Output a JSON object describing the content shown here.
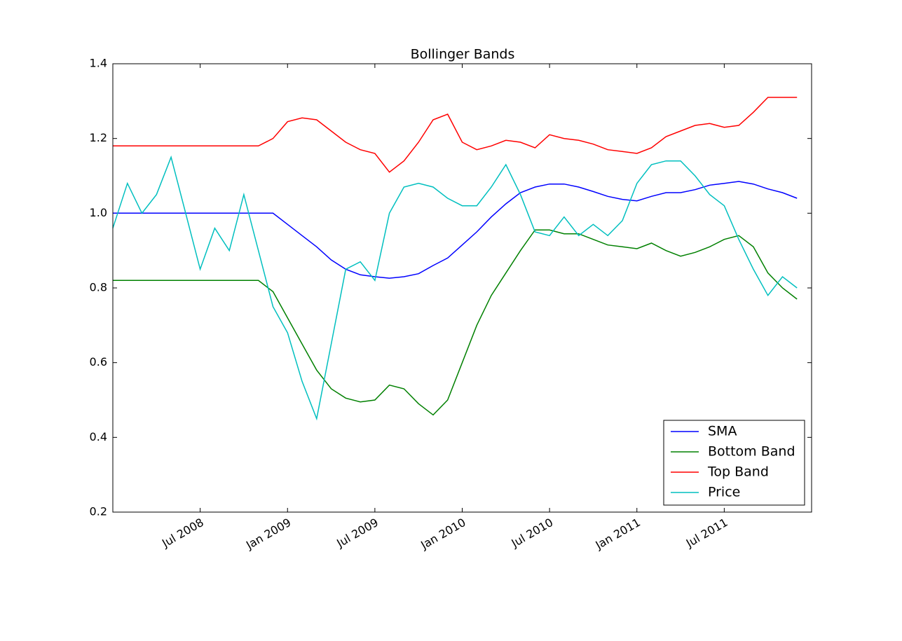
{
  "chart_data": {
    "type": "line",
    "title": "Bollinger Bands",
    "x": [
      "2008-01",
      "2008-02",
      "2008-03",
      "2008-04",
      "2008-05",
      "2008-06",
      "2008-07",
      "2008-08",
      "2008-09",
      "2008-10",
      "2008-11",
      "2008-12",
      "2009-01",
      "2009-02",
      "2009-03",
      "2009-04",
      "2009-05",
      "2009-06",
      "2009-07",
      "2009-08",
      "2009-09",
      "2009-10",
      "2009-11",
      "2009-12",
      "2010-01",
      "2010-02",
      "2010-03",
      "2010-04",
      "2010-05",
      "2010-06",
      "2010-07",
      "2010-08",
      "2010-09",
      "2010-10",
      "2010-11",
      "2010-12",
      "2011-01",
      "2011-02",
      "2011-03",
      "2011-04",
      "2011-05",
      "2011-06",
      "2011-07",
      "2011-08",
      "2011-09",
      "2011-10",
      "2011-11",
      "2011-12"
    ],
    "series": [
      {
        "name": "SMA",
        "color": "#0000ff",
        "values": [
          1.0,
          1.0,
          1.0,
          1.0,
          1.0,
          1.0,
          1.0,
          1.0,
          1.0,
          1.0,
          1.0,
          1.0,
          0.97,
          0.94,
          0.91,
          0.875,
          0.85,
          0.835,
          0.83,
          0.826,
          0.83,
          0.838,
          0.86,
          0.88,
          0.915,
          0.95,
          0.99,
          1.025,
          1.055,
          1.07,
          1.078,
          1.078,
          1.07,
          1.058,
          1.045,
          1.037,
          1.033,
          1.045,
          1.055,
          1.055,
          1.063,
          1.075,
          1.08,
          1.085,
          1.078,
          1.065,
          1.055,
          1.04
        ]
      },
      {
        "name": "Bottom Band",
        "color": "#008000",
        "values": [
          0.82,
          0.82,
          0.82,
          0.82,
          0.82,
          0.82,
          0.82,
          0.82,
          0.82,
          0.82,
          0.82,
          0.79,
          0.72,
          0.65,
          0.58,
          0.53,
          0.505,
          0.495,
          0.5,
          0.54,
          0.53,
          0.49,
          0.46,
          0.5,
          0.6,
          0.7,
          0.78,
          0.84,
          0.9,
          0.955,
          0.955,
          0.945,
          0.945,
          0.93,
          0.915,
          0.91,
          0.905,
          0.92,
          0.9,
          0.885,
          0.895,
          0.91,
          0.93,
          0.94,
          0.91,
          0.84,
          0.8,
          0.77
        ]
      },
      {
        "name": "Top Band",
        "color": "#ff0000",
        "values": [
          1.18,
          1.18,
          1.18,
          1.18,
          1.18,
          1.18,
          1.18,
          1.18,
          1.18,
          1.18,
          1.18,
          1.2,
          1.245,
          1.255,
          1.25,
          1.22,
          1.19,
          1.17,
          1.16,
          1.11,
          1.14,
          1.19,
          1.25,
          1.265,
          1.19,
          1.17,
          1.18,
          1.195,
          1.19,
          1.175,
          1.21,
          1.2,
          1.195,
          1.185,
          1.17,
          1.165,
          1.16,
          1.175,
          1.205,
          1.22,
          1.235,
          1.24,
          1.23,
          1.235,
          1.27,
          1.31,
          1.31,
          1.31
        ]
      },
      {
        "name": "Price",
        "color": "#00bfbf",
        "values": [
          0.96,
          1.08,
          1.0,
          1.05,
          1.15,
          1.0,
          0.85,
          0.96,
          0.9,
          1.05,
          0.9,
          0.75,
          0.68,
          0.55,
          0.45,
          0.65,
          0.85,
          0.87,
          0.82,
          1.0,
          1.07,
          1.08,
          1.07,
          1.04,
          1.02,
          1.02,
          1.07,
          1.13,
          1.05,
          0.95,
          0.94,
          0.99,
          0.94,
          0.97,
          0.94,
          0.98,
          1.08,
          1.13,
          1.14,
          1.14,
          1.1,
          1.05,
          1.02,
          0.93,
          0.85,
          0.78,
          0.83,
          0.8
        ]
      }
    ],
    "xlim": [
      "2008-01",
      "2012-01"
    ],
    "xticks": [
      {
        "value": "2008-07",
        "label": "Jul 2008"
      },
      {
        "value": "2009-01",
        "label": "Jan 2009"
      },
      {
        "value": "2009-07",
        "label": "Jul 2009"
      },
      {
        "value": "2010-01",
        "label": "Jan 2010"
      },
      {
        "value": "2010-07",
        "label": "Jul 2010"
      },
      {
        "value": "2011-01",
        "label": "Jan 2011"
      },
      {
        "value": "2011-07",
        "label": "Jul 2011"
      }
    ],
    "ylim": [
      0.2,
      1.4
    ],
    "yticks": [
      0.2,
      0.4,
      0.6,
      0.8,
      {
        "value": 1,
        "label": "1.0"
      },
      1.2,
      1.4
    ],
    "legend": "lower right"
  }
}
